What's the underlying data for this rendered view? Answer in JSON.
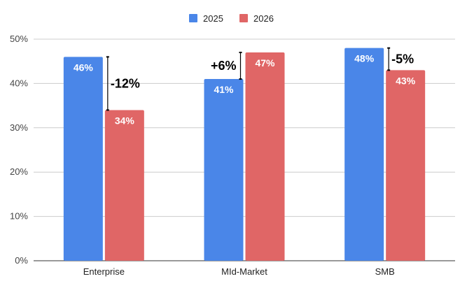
{
  "chart_data": {
    "type": "bar",
    "categories": [
      "Enterprise",
      "MId-Market",
      "SMB"
    ],
    "series": [
      {
        "name": "2025",
        "values": [
          46,
          41,
          48
        ],
        "labels": [
          "46%",
          "41%",
          "48%"
        ],
        "color": "#4a86e8"
      },
      {
        "name": "2026",
        "values": [
          34,
          47,
          43
        ],
        "labels": [
          "34%",
          "47%",
          "43%"
        ],
        "color": "#e06666"
      }
    ],
    "changes": [
      "-12%",
      "+6%",
      "-5%"
    ],
    "ylim": [
      0,
      50
    ],
    "yticks": [
      0,
      10,
      20,
      30,
      40,
      50
    ],
    "ytick_labels": [
      "0%",
      "10%",
      "20%",
      "30%",
      "40%",
      "50%"
    ],
    "grid": true,
    "legend_position": "top-center",
    "title": "",
    "xlabel": "",
    "ylabel": ""
  }
}
